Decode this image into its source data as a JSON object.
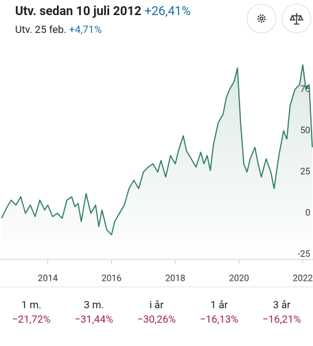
{
  "header": {
    "title": "Utv. sedan 10 juli 2012",
    "title_change": "+26,41%",
    "subtitle": "Utv. 25 feb.",
    "subtitle_change": "+4,71%"
  },
  "chart_data": {
    "type": "line",
    "color": "#2b7a62",
    "x": [
      2012.55,
      2012.7,
      2012.85,
      2013.0,
      2013.15,
      2013.3,
      2013.45,
      2013.6,
      2013.75,
      2013.9,
      2014.0,
      2014.15,
      2014.3,
      2014.45,
      2014.6,
      2014.75,
      2014.85,
      2014.95,
      2015.05,
      2015.2,
      2015.35,
      2015.5,
      2015.6,
      2015.7,
      2015.85,
      2016.0,
      2016.1,
      2016.25,
      2016.4,
      2016.55,
      2016.7,
      2016.85,
      2017.0,
      2017.15,
      2017.3,
      2017.45,
      2017.55,
      2017.7,
      2017.85,
      2018.0,
      2018.1,
      2018.25,
      2018.35,
      2018.5,
      2018.65,
      2018.8,
      2018.9,
      2019.0,
      2019.1,
      2019.2,
      2019.35,
      2019.5,
      2019.6,
      2019.7,
      2019.85,
      2019.95,
      2020.05,
      2020.15,
      2020.25,
      2020.35,
      2020.5,
      2020.6,
      2020.7,
      2020.85,
      2021.0,
      2021.1,
      2021.25,
      2021.4,
      2021.5,
      2021.6,
      2021.75,
      2021.9,
      2022.0,
      2022.1,
      2022.2,
      2022.3
    ],
    "values": [
      -3,
      3,
      8,
      5,
      10,
      0,
      5,
      -2,
      8,
      2,
      5,
      -2,
      0,
      -3,
      8,
      10,
      4,
      6,
      -5,
      12,
      0,
      5,
      -8,
      2,
      -10,
      -13,
      -5,
      0,
      5,
      15,
      20,
      15,
      25,
      28,
      30,
      25,
      32,
      22,
      35,
      30,
      38,
      47,
      38,
      33,
      28,
      37,
      30,
      35,
      26,
      42,
      55,
      60,
      70,
      75,
      80,
      88,
      55,
      30,
      25,
      33,
      40,
      30,
      22,
      33,
      25,
      15,
      35,
      50,
      45,
      65,
      75,
      78,
      90,
      75,
      78,
      40
    ],
    "xlim": [
      2012.5,
      2022.3
    ],
    "ylim": [
      -28,
      96
    ],
    "xticks": [
      2014,
      2016,
      2018,
      2020,
      2022
    ],
    "yticks": [
      75,
      50,
      25,
      0,
      -25
    ],
    "grid": false
  },
  "periods": [
    {
      "label": "1 m.",
      "change": "−21,72%"
    },
    {
      "label": "3 m.",
      "change": "−31,44%"
    },
    {
      "label": "i år",
      "change": "−30,26%"
    },
    {
      "label": "1 år",
      "change": "−16,13%"
    },
    {
      "label": "3 år",
      "change": "−16,21%"
    }
  ]
}
